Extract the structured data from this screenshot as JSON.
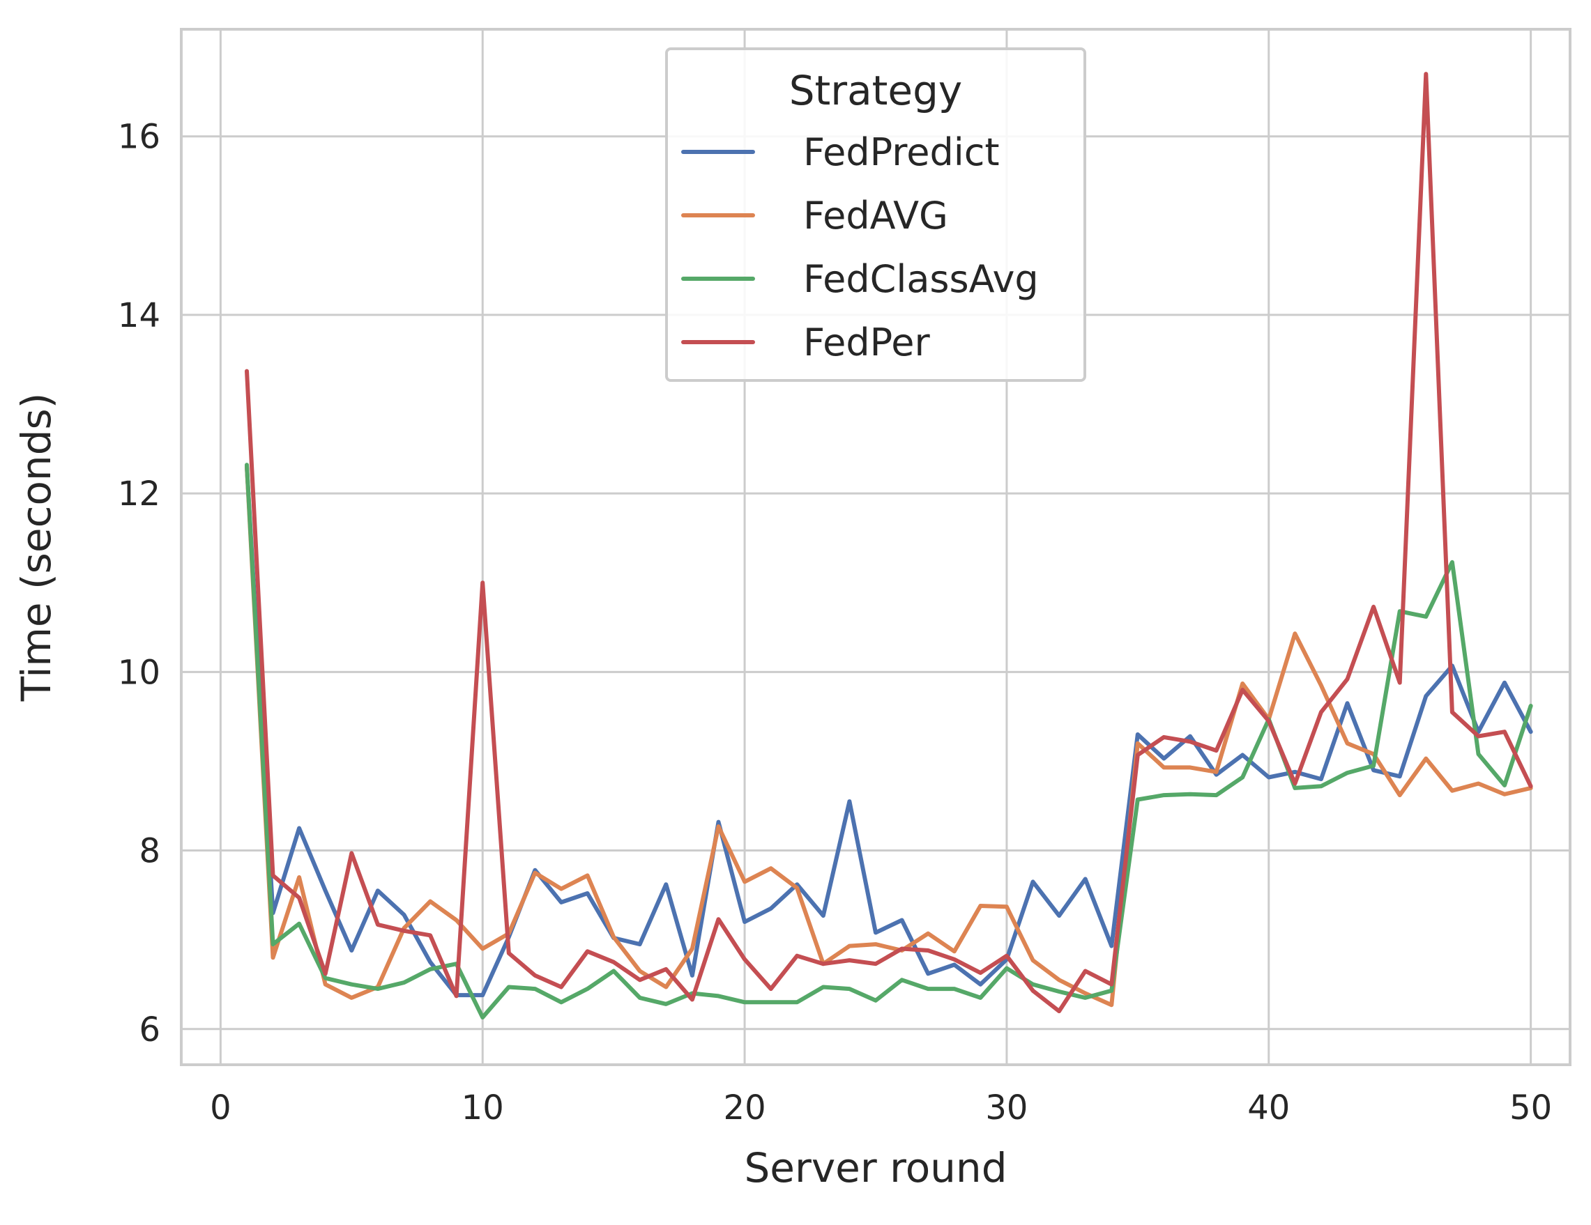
{
  "chart_data": {
    "type": "line",
    "xlabel": "Server round",
    "ylabel": "Time (seconds)",
    "xlim": [
      -1.5,
      51.5
    ],
    "ylim": [
      5.6,
      17.2
    ],
    "xticks": [
      0,
      10,
      20,
      30,
      40,
      50
    ],
    "yticks": [
      6,
      8,
      10,
      12,
      14,
      16
    ],
    "grid": true,
    "legend": {
      "title": "Strategy",
      "position": "top-center"
    },
    "x": [
      1,
      2,
      3,
      4,
      5,
      6,
      7,
      8,
      9,
      10,
      11,
      12,
      13,
      14,
      15,
      16,
      17,
      18,
      19,
      20,
      21,
      22,
      23,
      24,
      25,
      26,
      27,
      28,
      29,
      30,
      31,
      32,
      33,
      34,
      35,
      36,
      37,
      38,
      39,
      40,
      41,
      42,
      43,
      44,
      45,
      46,
      47,
      48,
      49,
      50
    ],
    "series": [
      {
        "name": "FedPredict",
        "color": "#4c72b0",
        "values": [
          12.3,
          7.3,
          8.25,
          7.55,
          6.88,
          7.55,
          7.28,
          6.75,
          6.38,
          6.38,
          7.03,
          7.78,
          7.42,
          7.52,
          7.02,
          6.95,
          7.62,
          6.6,
          8.32,
          7.2,
          7.35,
          7.62,
          7.27,
          8.55,
          7.08,
          7.22,
          6.62,
          6.72,
          6.5,
          6.78,
          7.65,
          7.27,
          7.68,
          6.93,
          9.3,
          9.03,
          9.28,
          8.85,
          9.07,
          8.82,
          8.88,
          8.8,
          9.65,
          8.9,
          8.83,
          9.73,
          10.07,
          9.33,
          9.88,
          9.33
        ]
      },
      {
        "name": "FedAVG",
        "color": "#dd8452",
        "values": [
          12.3,
          6.8,
          7.7,
          6.5,
          6.35,
          6.47,
          7.13,
          7.43,
          7.22,
          6.9,
          7.07,
          7.75,
          7.57,
          7.72,
          7.03,
          6.65,
          6.47,
          6.9,
          8.27,
          7.65,
          7.8,
          7.58,
          6.73,
          6.93,
          6.95,
          6.88,
          7.07,
          6.87,
          7.38,
          7.37,
          6.77,
          6.55,
          6.4,
          6.27,
          9.2,
          8.93,
          8.93,
          8.88,
          9.87,
          9.47,
          10.43,
          9.85,
          9.2,
          9.08,
          8.62,
          9.03,
          8.67,
          8.75,
          8.63,
          8.7
        ]
      },
      {
        "name": "FedClassAvg",
        "color": "#55a868",
        "values": [
          12.32,
          6.95,
          7.18,
          6.57,
          6.5,
          6.45,
          6.52,
          6.67,
          6.73,
          6.13,
          6.47,
          6.45,
          6.3,
          6.45,
          6.65,
          6.35,
          6.28,
          6.4,
          6.37,
          6.3,
          6.3,
          6.3,
          6.47,
          6.45,
          6.32,
          6.55,
          6.45,
          6.45,
          6.35,
          6.68,
          6.5,
          6.42,
          6.35,
          6.43,
          8.57,
          8.62,
          8.63,
          8.62,
          8.82,
          9.47,
          8.7,
          8.72,
          8.87,
          8.95,
          10.68,
          10.62,
          11.23,
          9.08,
          8.73,
          9.62
        ]
      },
      {
        "name": "FedPer",
        "color": "#c44e52",
        "values": [
          13.37,
          7.72,
          7.47,
          6.62,
          7.97,
          7.17,
          7.1,
          7.05,
          6.37,
          11.0,
          6.85,
          6.6,
          6.47,
          6.87,
          6.75,
          6.55,
          6.67,
          6.33,
          7.23,
          6.78,
          6.45,
          6.82,
          6.73,
          6.77,
          6.73,
          6.9,
          6.88,
          6.78,
          6.63,
          6.82,
          6.43,
          6.2,
          6.65,
          6.5,
          9.07,
          9.27,
          9.22,
          9.12,
          9.8,
          9.45,
          8.75,
          9.55,
          9.92,
          10.73,
          9.88,
          16.7,
          9.55,
          9.28,
          9.33,
          8.72
        ]
      }
    ]
  }
}
